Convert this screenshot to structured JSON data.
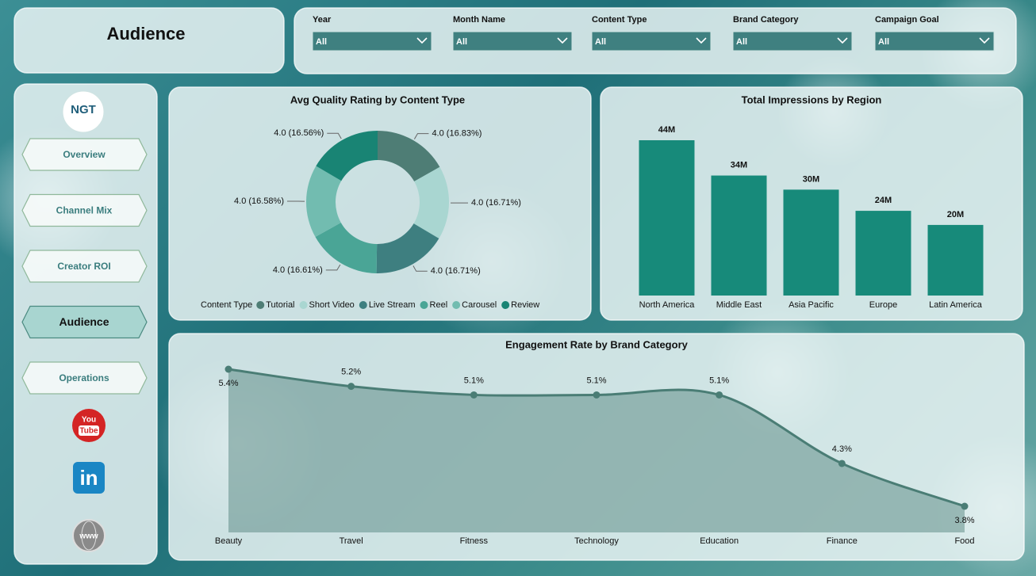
{
  "header": {
    "title": "Audience"
  },
  "filters": [
    {
      "label": "Year",
      "value": "All"
    },
    {
      "label": "Month Name",
      "value": "All"
    },
    {
      "label": "Content Type",
      "value": "All"
    },
    {
      "label": "Brand Category",
      "value": "All"
    },
    {
      "label": "Campaign Goal",
      "value": "All"
    }
  ],
  "logo": "NGT",
  "nav": [
    {
      "label": "Overview"
    },
    {
      "label": "Channel Mix"
    },
    {
      "label": "Creator ROI"
    },
    {
      "label": "Audience",
      "active": true
    },
    {
      "label": "Operations"
    }
  ],
  "icons": {
    "youtube": [
      "You",
      "Tube"
    ],
    "linkedin": "in",
    "web": "www"
  },
  "chart_data": [
    {
      "type": "donut",
      "title": "Avg Quality Rating by Content Type",
      "legend_title": "Content Type",
      "categories": [
        "Tutorial",
        "Short Video",
        "Live Stream",
        "Reel",
        "Carousel",
        "Review"
      ],
      "values": [
        16.83,
        16.71,
        16.71,
        16.61,
        16.58,
        16.56
      ],
      "value_labels": [
        "4.0 (16.83%)",
        "4.0 (16.71%)",
        "4.0 (16.71%)",
        "4.0 (16.61%)",
        "4.0 (16.58%)",
        "4.0 (16.56%)"
      ],
      "colors": [
        "#4e7d75",
        "#a9d6d1",
        "#3e7f80",
        "#4aa596",
        "#72bcb0",
        "#198474"
      ],
      "legend": "bottom"
    },
    {
      "type": "bar",
      "title": "Total Impressions by Region",
      "categories": [
        "North America",
        "Middle East",
        "Asia Pacific",
        "Europe",
        "Latin America"
      ],
      "values": [
        44,
        34,
        30,
        24,
        20
      ],
      "value_labels": [
        "44M",
        "34M",
        "30M",
        "24M",
        "20M"
      ],
      "color": "#178a7a"
    },
    {
      "type": "area",
      "title": "Engagement Rate by Brand Category",
      "categories": [
        "Beauty",
        "Travel",
        "Fitness",
        "Technology",
        "Education",
        "Finance",
        "Food"
      ],
      "values": [
        5.4,
        5.2,
        5.1,
        5.1,
        5.1,
        4.3,
        3.8
      ],
      "value_labels": [
        "5.4%",
        "5.2%",
        "5.1%",
        "5.1%",
        "5.1%",
        "4.3%",
        "3.8%"
      ],
      "color": "#4a7d75"
    }
  ]
}
